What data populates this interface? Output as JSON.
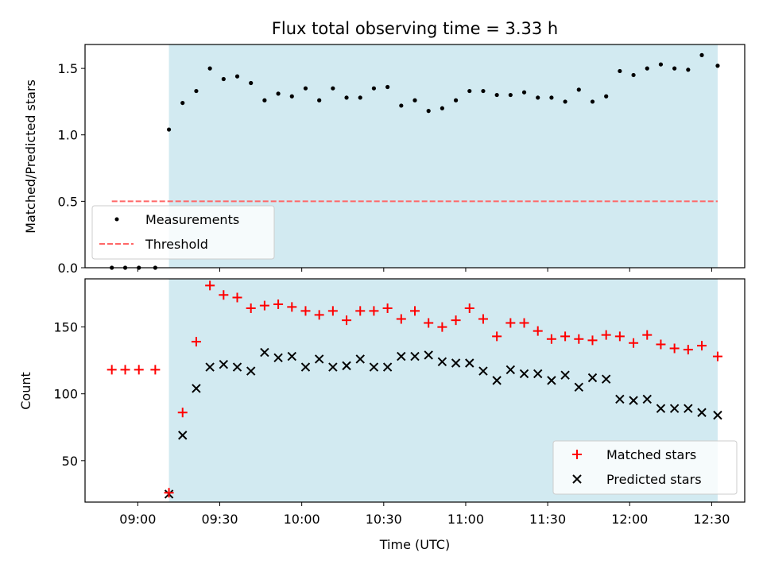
{
  "colors": {
    "span": "#add8e6",
    "measurement": "#000000",
    "threshold": "#ff6666",
    "matched": "#ff0000",
    "predicted": "#000000"
  },
  "chart_data": {
    "type": "scatter",
    "title": "Flux total observing time = 3.33 h",
    "xlabel": "Time (UTC)",
    "x_ticks": [
      {
        "time": "09:00",
        "min": 540
      },
      {
        "time": "09:30",
        "min": 570
      },
      {
        "time": "10:00",
        "min": 600
      },
      {
        "time": "10:30",
        "min": 630
      },
      {
        "time": "11:00",
        "min": 660
      },
      {
        "time": "11:30",
        "min": 690
      },
      {
        "time": "12:00",
        "min": 720
      },
      {
        "time": "12:30",
        "min": 750
      }
    ],
    "xlim_min": [
      520.7,
      762.1
    ],
    "observing_span_min": [
      551.4,
      752.2
    ],
    "top": {
      "ylabel": "Matched/Predicted stars",
      "ylim": [
        0,
        1.68
      ],
      "yticks": [
        0.0,
        0.5,
        1.0,
        1.5
      ],
      "ytick_labels": [
        "0.0",
        "0.5",
        "1.0",
        "1.5"
      ],
      "threshold": {
        "value": 0.5,
        "x_from": 530.5,
        "x_to": 752.2
      },
      "legend": {
        "position": "lower-left",
        "entries": [
          "Measurements",
          "Threshold"
        ]
      }
    },
    "bottom": {
      "ylabel": "Count",
      "ylim": [
        19,
        186
      ],
      "yticks": [
        50,
        100,
        150
      ],
      "ytick_labels": [
        "50",
        "100",
        "150"
      ],
      "legend": {
        "position": "lower-right",
        "entries": [
          "Matched stars",
          "Predicted stars"
        ]
      }
    },
    "x_min": [
      530.5,
      535.4,
      540.4,
      546.4,
      551.4,
      556.4,
      561.4,
      566.4,
      571.4,
      576.4,
      581.4,
      586.4,
      591.4,
      596.4,
      601.4,
      606.4,
      611.4,
      616.4,
      621.4,
      626.4,
      631.4,
      636.4,
      641.4,
      646.4,
      651.4,
      656.4,
      661.4,
      666.4,
      671.4,
      676.4,
      681.4,
      686.4,
      691.4,
      696.4,
      701.4,
      706.4,
      711.4,
      716.4,
      721.4,
      726.4,
      731.4,
      736.4,
      741.4,
      746.4,
      752.2
    ],
    "matched_over_predicted": [
      0,
      0,
      0,
      0,
      1.04,
      1.24,
      1.33,
      1.5,
      1.42,
      1.44,
      1.39,
      1.26,
      1.31,
      1.29,
      1.35,
      1.26,
      1.35,
      1.28,
      1.28,
      1.35,
      1.36,
      1.22,
      1.26,
      1.18,
      1.2,
      1.26,
      1.33,
      1.33,
      1.3,
      1.3,
      1.32,
      1.28,
      1.28,
      1.25,
      1.34,
      1.25,
      1.29,
      1.48,
      1.45,
      1.5,
      1.53,
      1.5,
      1.49,
      1.6,
      1.52
    ],
    "matched_stars": [
      118,
      118,
      118,
      118,
      26,
      86,
      139,
      181,
      174,
      172,
      164,
      166,
      167,
      165,
      162,
      159,
      162,
      155,
      162,
      162,
      164,
      156,
      162,
      153,
      150,
      155,
      164,
      156,
      143,
      153,
      153,
      147,
      141,
      143,
      141,
      140,
      144,
      143,
      138,
      144,
      137,
      134,
      133,
      136,
      128
    ],
    "predicted_stars": [
      null,
      null,
      null,
      null,
      25,
      69,
      104,
      120,
      122,
      120,
      117,
      131,
      127,
      128,
      120,
      126,
      120,
      121,
      126,
      120,
      120,
      128,
      128,
      129,
      124,
      123,
      123,
      117,
      110,
      118,
      115,
      115,
      110,
      114,
      105,
      112,
      111,
      96,
      95,
      96,
      89,
      89,
      89,
      86,
      84
    ]
  }
}
